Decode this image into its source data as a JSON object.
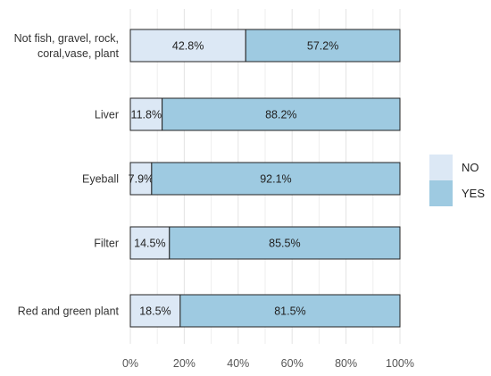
{
  "chart_data": {
    "type": "bar",
    "orientation": "horizontal",
    "stacked": true,
    "categories": [
      [
        "Not fish, gravel, rock,",
        "coral,vase, plant"
      ],
      [
        "Liver"
      ],
      [
        "Eyeball"
      ],
      [
        "Filter"
      ],
      [
        "Red and green plant"
      ]
    ],
    "series": [
      {
        "name": "NO",
        "values": [
          42.8,
          11.8,
          7.9,
          14.5,
          18.5
        ],
        "labels": [
          "42.8%",
          "11.8%",
          "7.9%",
          "14.5%",
          "18.5%"
        ]
      },
      {
        "name": "YES",
        "values": [
          57.2,
          88.2,
          92.1,
          85.5,
          81.5
        ],
        "labels": [
          "57.2%",
          "88.2%",
          "92.1%",
          "85.5%",
          "81.5%"
        ]
      }
    ],
    "x_ticks": [
      "0%",
      "20%",
      "40%",
      "60%",
      "80%",
      "100%"
    ],
    "xlim": [
      0,
      100
    ],
    "grid": true,
    "legend_position": "right",
    "colors": {
      "NO": "#dce8f5",
      "YES": "#9ecae1"
    }
  }
}
